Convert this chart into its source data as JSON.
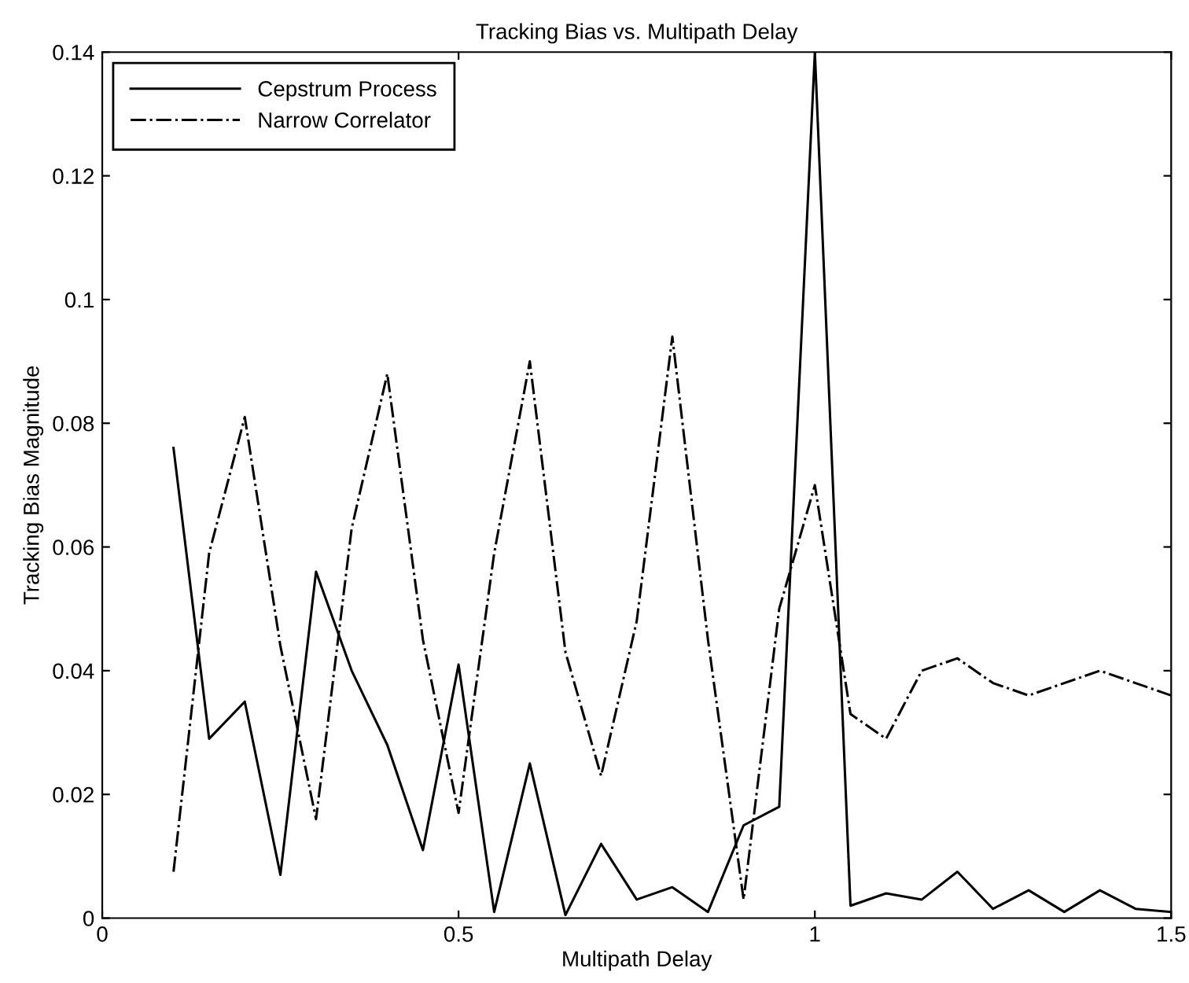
{
  "chart_data": {
    "type": "line",
    "title": "Tracking Bias vs. Multipath Delay",
    "xlabel": "Multipath Delay",
    "ylabel": "Tracking Bias Magnitude",
    "x": [
      0.1,
      0.15,
      0.2,
      0.25,
      0.3,
      0.35,
      0.4,
      0.45,
      0.5,
      0.55,
      0.6,
      0.65,
      0.7,
      0.75,
      0.8,
      0.85,
      0.9,
      0.95,
      1.0,
      1.05,
      1.1,
      1.15,
      1.2,
      1.25,
      1.3,
      1.35,
      1.4,
      1.45,
      1.5
    ],
    "series": [
      {
        "name": "Cepstrum Process",
        "color": "#000000",
        "line_style": "solid",
        "values": [
          0.076,
          0.029,
          0.035,
          0.007,
          0.056,
          0.04,
          0.028,
          0.011,
          0.041,
          0.001,
          0.025,
          0.0005,
          0.012,
          0.003,
          0.005,
          0.001,
          0.015,
          0.018,
          0.14,
          0.002,
          0.004,
          0.003,
          0.0075,
          0.0015,
          0.0045,
          0.001,
          0.0045,
          0.0015,
          0.001
        ]
      },
      {
        "name": "Narrow Correlator",
        "color": "#000000",
        "line_style": "dashdot",
        "values": [
          0.0075,
          0.059,
          0.081,
          0.044,
          0.016,
          0.063,
          0.088,
          0.045,
          0.017,
          0.059,
          0.09,
          0.043,
          0.023,
          0.048,
          0.094,
          0.045,
          0.003,
          0.05,
          0.07,
          0.033,
          0.029,
          0.04,
          0.042,
          0.038,
          0.036,
          0.038,
          0.04,
          0.038,
          0.036
        ]
      }
    ],
    "xlim": [
      0,
      1.5
    ],
    "xticks": [
      0,
      0.5,
      1,
      1.5
    ],
    "ylim": [
      0,
      0.14
    ],
    "yticks": [
      0,
      0.02,
      0.04,
      0.06,
      0.08,
      0.1,
      0.12,
      0.14
    ],
    "grid": false,
    "legend": "top left",
    "marker": "none"
  }
}
